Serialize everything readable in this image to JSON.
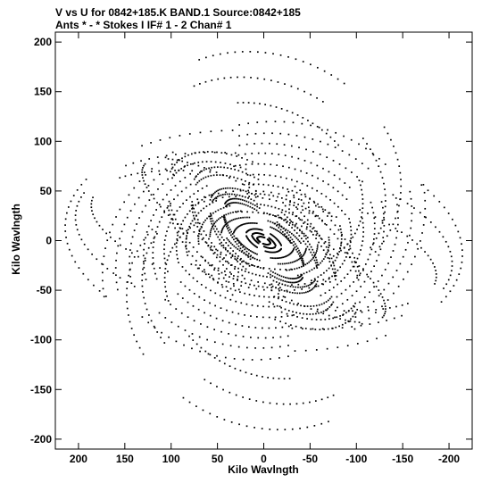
{
  "chart_data": {
    "type": "scatter",
    "title": "V vs U for 0842+185.K BAND.1   Source:0842+185",
    "subtitle": "Ants * - *    Stokes I  IF# 1 - 2  Chan# 1",
    "xlabel": "Kilo Wavlngth",
    "ylabel": "Kilo Wavlngth",
    "xlim": [
      225,
      -225
    ],
    "ylim": [
      -210,
      210
    ],
    "x_ticks": [
      200,
      150,
      100,
      50,
      0,
      -50,
      -100,
      -150,
      -200
    ],
    "y_ticks": [
      -200,
      -150,
      -100,
      -50,
      0,
      50,
      100,
      150,
      200
    ],
    "grid": false,
    "tracks": [
      {
        "a": 8,
        "b": 4,
        "phi": 25,
        "yc": 1,
        "arc": [
          200,
          340
        ]
      },
      {
        "a": 15,
        "b": 7,
        "phi": 30,
        "yc": 2,
        "arc": [
          190,
          330
        ]
      },
      {
        "a": 22,
        "b": 12,
        "phi": 28,
        "yc": 3,
        "arc": [
          185,
          325
        ]
      },
      {
        "a": 35,
        "b": 20,
        "phi": 22,
        "yc": 5,
        "arc": [
          180,
          320
        ]
      },
      {
        "a": 48,
        "b": 26,
        "phi": 20,
        "yc": 6,
        "arc": [
          175,
          320
        ]
      },
      {
        "a": 60,
        "b": 35,
        "phi": 18,
        "yc": 8,
        "arc": [
          170,
          315
        ]
      },
      {
        "a": 72,
        "b": 45,
        "phi": 15,
        "yc": 10,
        "arc": [
          165,
          320
        ]
      },
      {
        "a": 85,
        "b": 58,
        "phi": 12,
        "yc": 12,
        "arc": [
          160,
          315
        ]
      },
      {
        "a": 95,
        "b": 70,
        "phi": 10,
        "yc": 14,
        "arc": [
          160,
          320
        ]
      },
      {
        "a": 108,
        "b": 82,
        "phi": 8,
        "yc": 16,
        "arc": [
          165,
          320
        ]
      },
      {
        "a": 120,
        "b": 95,
        "phi": 6,
        "yc": 18,
        "arc": [
          160,
          318
        ]
      },
      {
        "a": 130,
        "b": 108,
        "phi": 4,
        "yc": 20,
        "arc": [
          165,
          315
        ]
      },
      {
        "a": 145,
        "b": 120,
        "phi": 0,
        "yc": 22,
        "arc": [
          170,
          320
        ]
      },
      {
        "a": 160,
        "b": 132,
        "phi": -5,
        "yc": 24,
        "arc": [
          175,
          320
        ]
      },
      {
        "a": 175,
        "b": 145,
        "phi": -10,
        "yc": 26,
        "arc": [
          180,
          330
        ]
      },
      {
        "a": 190,
        "b": 60,
        "phi": 12,
        "yc": 0,
        "arc": [
          120,
          250
        ]
      },
      {
        "a": 205,
        "b": 85,
        "phi": 8,
        "yc": 0,
        "arc": [
          130,
          260
        ]
      },
      {
        "a": 215,
        "b": 110,
        "phi": 5,
        "yc": 0,
        "arc": [
          140,
          260
        ]
      },
      {
        "a": 150,
        "b": 40,
        "phi": 30,
        "yc": 0,
        "arc": [
          120,
          260
        ]
      },
      {
        "a": 120,
        "b": 60,
        "phi": 35,
        "yc": 5,
        "arc": [
          0,
          360
        ]
      },
      {
        "a": 95,
        "b": 45,
        "phi": 40,
        "yc": 4,
        "arc": [
          0,
          360
        ]
      },
      {
        "a": 70,
        "b": 32,
        "phi": 38,
        "yc": 3,
        "arc": [
          0,
          360
        ]
      },
      {
        "a": 55,
        "b": 22,
        "phi": 42,
        "yc": 2,
        "arc": [
          0,
          360
        ]
      },
      {
        "a": 135,
        "b": 100,
        "phi": 20,
        "yc": 60,
        "arc": [
          40,
          300
        ]
      },
      {
        "a": 150,
        "b": 118,
        "phi": 15,
        "yc": 70,
        "arc": [
          50,
          300
        ]
      },
      {
        "a": 110,
        "b": 80,
        "phi": 20,
        "yc": 55,
        "arc": [
          60,
          300
        ]
      }
    ]
  }
}
